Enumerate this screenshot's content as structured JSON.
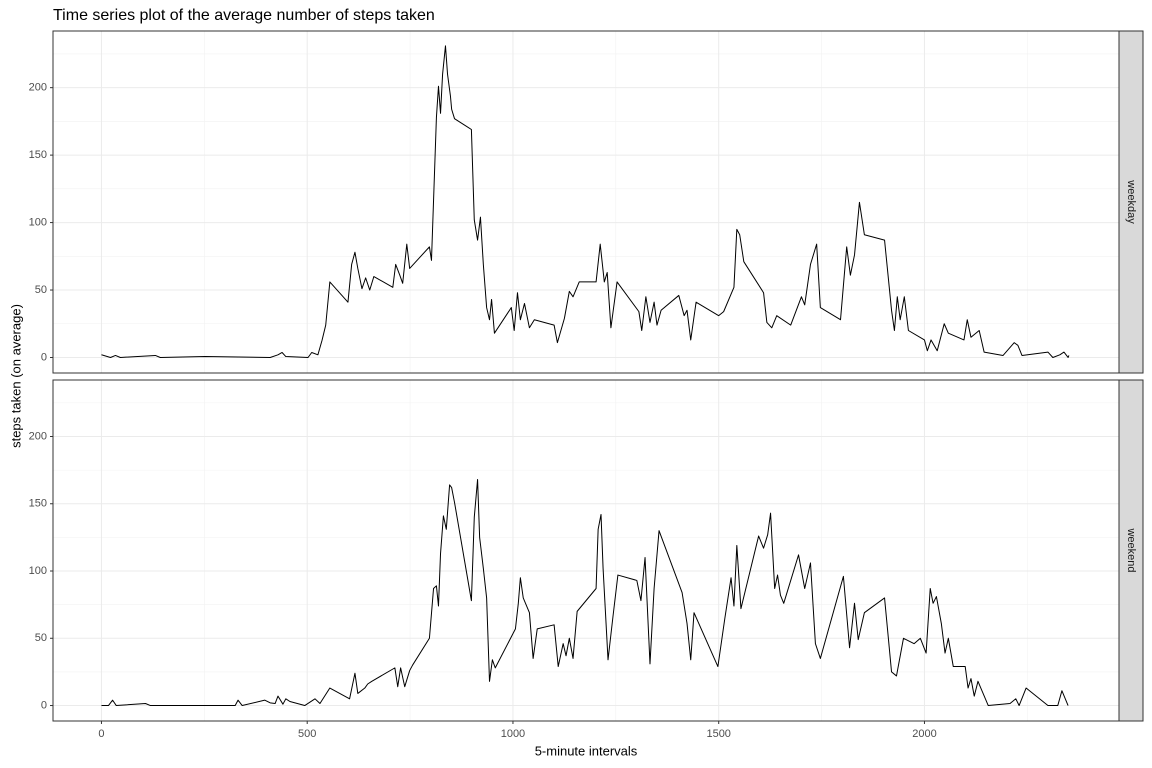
{
  "chart_data": {
    "type": "line",
    "title": "Time series plot of the average number of steps taken",
    "x_label": "5-minute intervals",
    "y_label": "steps taken (on average)",
    "xlim": [
      -117.75,
      2472.75
    ],
    "ylim": [
      -11.5,
      242
    ],
    "xticks": [
      0,
      500,
      1000,
      1500,
      2000
    ],
    "yticks": [
      0,
      50,
      100,
      150,
      200
    ],
    "grid": true,
    "color": "#000000",
    "panels": [
      {
        "name": "weekday",
        "x": [
          0,
          22,
          34,
          46,
          131,
          143,
          252,
          410,
          429,
          439,
          448,
          502,
          511,
          526,
          536,
          545,
          555,
          599,
          608,
          616,
          623,
          633,
          642,
          652,
          662,
          708,
          715,
          725,
          732,
          742,
          749,
          797,
          802,
          814,
          819,
          824,
          829,
          836,
          841,
          848,
          851,
          858,
          899,
          906,
          914,
          921,
          928,
          936,
          943,
          948,
          955,
          996,
          1003,
          1011,
          1018,
          1028,
          1040,
          1052,
          1100,
          1108,
          1125,
          1137,
          1146,
          1161,
          1202,
          1212,
          1222,
          1229,
          1238,
          1253,
          1306,
          1313,
          1323,
          1333,
          1343,
          1350,
          1360,
          1403,
          1416,
          1423,
          1432,
          1445,
          1500,
          1512,
          1537,
          1544,
          1551,
          1561,
          1609,
          1617,
          1629,
          1641,
          1675,
          1701,
          1709,
          1723,
          1738,
          1747,
          1796,
          1811,
          1820,
          1830,
          1842,
          1854,
          1903,
          1920,
          1927,
          1934,
          1941,
          1951,
          1961,
          2000,
          2007,
          2016,
          2031,
          2048,
          2058,
          2096,
          2104,
          2113,
          2133,
          2145,
          2191,
          2218,
          2227,
          2237,
          2300,
          2312,
          2329,
          2339,
          2349,
          2351
        ],
        "values": [
          2,
          0,
          1.5,
          0,
          1.5,
          0,
          0.7,
          0,
          2,
          3.7,
          0.7,
          0,
          3.7,
          2,
          12.7,
          24,
          56,
          41,
          69,
          78,
          66,
          51,
          59,
          50,
          60,
          52,
          69,
          61,
          55,
          84,
          66,
          82,
          72,
          178,
          201,
          181,
          210,
          231,
          210,
          194,
          184,
          177,
          169,
          102,
          87,
          104,
          69,
          37,
          28,
          43,
          18,
          37,
          20,
          48,
          28,
          40,
          22,
          28,
          24,
          11,
          29,
          49,
          45,
          56,
          56,
          84,
          56,
          63,
          22,
          56,
          34,
          20,
          45,
          26,
          41,
          24,
          35,
          46,
          31,
          35,
          13,
          41,
          31,
          34,
          52,
          95,
          91,
          71,
          48,
          26,
          22,
          31,
          24,
          45,
          39,
          69,
          84,
          37,
          28,
          82,
          61,
          76,
          115,
          91,
          87,
          35,
          20,
          45,
          28,
          45,
          20,
          13,
          5,
          13,
          5,
          25,
          18,
          13,
          28,
          15,
          20,
          4,
          1.5,
          11,
          9,
          1.5,
          4,
          0,
          2,
          4,
          0,
          1.5
        ]
      },
      {
        "name": "weekend",
        "x": [
          0,
          17,
          27,
          36,
          107,
          119,
          325,
          332,
          342,
          397,
          410,
          422,
          429,
          441,
          448,
          458,
          494,
          519,
          531,
          555,
          603,
          616,
          623,
          640,
          647,
          657,
          713,
          720,
          727,
          737,
          749,
          756,
          797,
          807,
          814,
          819,
          824,
          831,
          838,
          846,
          851,
          858,
          899,
          906,
          914,
          919,
          928,
          936,
          943,
          950,
          957,
          1006,
          1013,
          1018,
          1025,
          1040,
          1049,
          1059,
          1100,
          1110,
          1122,
          1129,
          1137,
          1146,
          1156,
          1202,
          1207,
          1214,
          1219,
          1231,
          1243,
          1255,
          1301,
          1311,
          1321,
          1333,
          1343,
          1355,
          1411,
          1423,
          1432,
          1440,
          1498,
          1515,
          1530,
          1537,
          1544,
          1554,
          1597,
          1609,
          1619,
          1626,
          1636,
          1643,
          1650,
          1658,
          1694,
          1709,
          1723,
          1735,
          1747,
          1803,
          1818,
          1830,
          1839,
          1854,
          1903,
          1920,
          1932,
          1949,
          1975,
          1990,
          2004,
          2014,
          2021,
          2029,
          2041,
          2050,
          2058,
          2070,
          2099,
          2106,
          2113,
          2121,
          2130,
          2155,
          2208,
          2222,
          2230,
          2247,
          2300,
          2324,
          2334,
          2349
        ],
        "values": [
          0,
          0,
          4,
          0,
          1.5,
          0,
          0,
          4,
          0,
          4,
          2,
          1.5,
          7,
          1,
          5,
          3,
          0,
          5,
          1.5,
          13,
          5,
          24,
          9,
          13,
          16,
          18,
          28,
          14,
          28,
          14,
          26,
          30,
          50,
          87,
          89,
          74,
          113,
          141,
          131,
          164,
          162,
          151,
          78,
          140,
          168,
          125,
          102,
          80,
          18,
          34,
          28,
          57,
          76,
          95,
          80,
          69,
          35,
          57,
          60,
          29,
          46,
          37,
          50,
          35,
          70,
          87,
          131,
          142,
          102,
          34,
          66,
          97,
          93,
          78,
          110,
          31,
          87,
          130,
          84,
          61,
          34,
          69,
          29,
          65,
          95,
          74,
          119,
          72,
          126,
          117,
          127,
          143,
          87,
          97,
          82,
          76,
          112,
          87,
          106,
          46,
          35,
          96,
          43,
          76,
          49,
          69,
          80,
          25,
          22,
          50,
          46,
          50,
          39,
          87,
          76,
          81,
          61,
          39,
          50,
          29,
          29,
          13,
          20,
          7,
          18,
          0,
          1.5,
          5,
          0,
          13,
          0,
          0,
          11,
          0
        ]
      }
    ]
  }
}
